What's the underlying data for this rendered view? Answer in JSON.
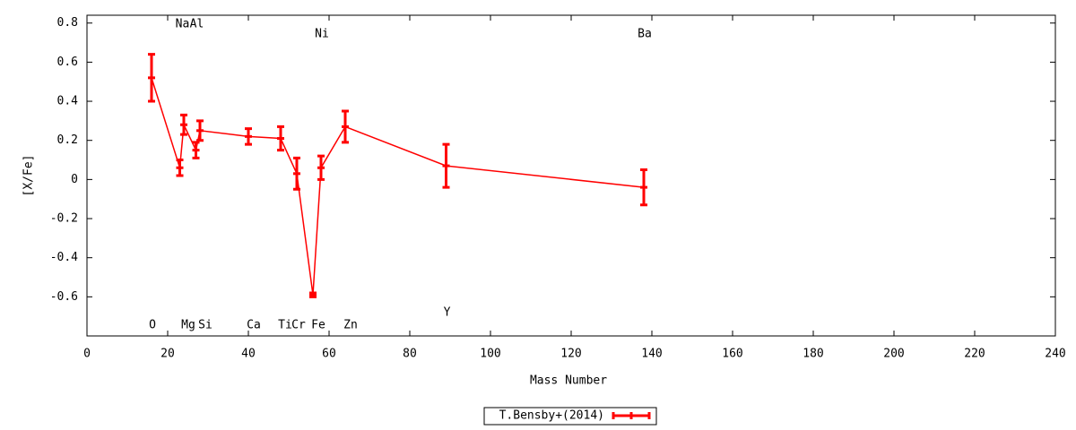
{
  "chart_data": {
    "type": "errorbar-line",
    "x_label": "Mass Number",
    "y_label": "[X/Fe]",
    "series": [
      {
        "name": "T.Bensby+(2014)",
        "color": "#ff0000",
        "x": [
          16,
          23,
          24,
          27,
          28,
          40,
          48,
          52,
          56,
          58,
          64,
          89,
          138
        ],
        "values": [
          0.52,
          0.06,
          0.28,
          0.15,
          0.25,
          0.22,
          0.21,
          0.03,
          -0.59,
          0.06,
          0.27,
          0.07,
          -0.04
        ],
        "errors": [
          0.12,
          0.04,
          0.05,
          0.04,
          0.05,
          0.04,
          0.06,
          0.08,
          0.01,
          0.06,
          0.08,
          0.11,
          0.09
        ],
        "labels": [
          "O",
          "Na",
          "Mg",
          "Al",
          "Si",
          "Ca",
          "Ti",
          "Cr",
          "Fe",
          "Ni",
          "Zn",
          "Y",
          "Ba"
        ]
      }
    ],
    "xlim": [
      0,
      240
    ],
    "xticks": [
      0,
      20,
      40,
      60,
      80,
      100,
      120,
      140,
      160,
      180,
      200,
      220,
      240
    ],
    "ylim": [
      -0.8,
      0.84
    ],
    "yticks": [
      -0.6,
      -0.4,
      -0.2,
      0,
      0.2,
      0.4,
      0.6,
      0.8
    ],
    "legend": "bottom"
  }
}
